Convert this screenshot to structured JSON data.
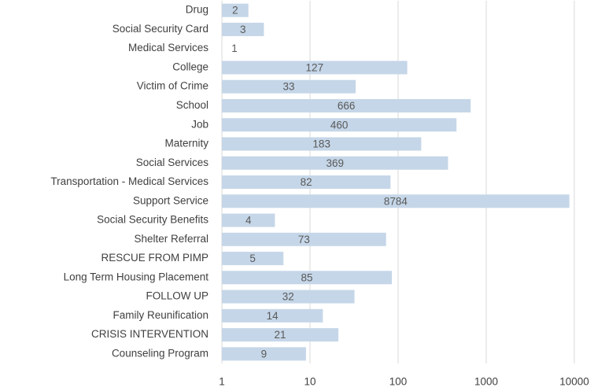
{
  "chart_data": {
    "type": "bar",
    "orientation": "horizontal",
    "categories": [
      "Drug",
      "Social Security Card",
      "Medical Services",
      "College",
      "Victim of Crime",
      "School",
      "Job",
      "Maternity",
      "Social Services",
      "Transportation -  Medical Services",
      "Support Service",
      "Social Security Benefits",
      "Shelter Referral",
      "RESCUE FROM PIMP",
      "Long Term Housing Placement",
      "FOLLOW UP",
      "Family Reunification",
      "CRISIS INTERVENTION",
      "Counseling Program"
    ],
    "values": [
      2,
      3,
      1,
      127,
      33,
      666,
      460,
      183,
      369,
      82,
      8784,
      4,
      73,
      5,
      85,
      32,
      14,
      21,
      9
    ],
    "color": "#c5d6e8",
    "xlim": [
      1,
      10000
    ],
    "xticks": [
      1,
      10,
      100,
      1000,
      10000
    ],
    "log_x": true,
    "grid": true
  }
}
